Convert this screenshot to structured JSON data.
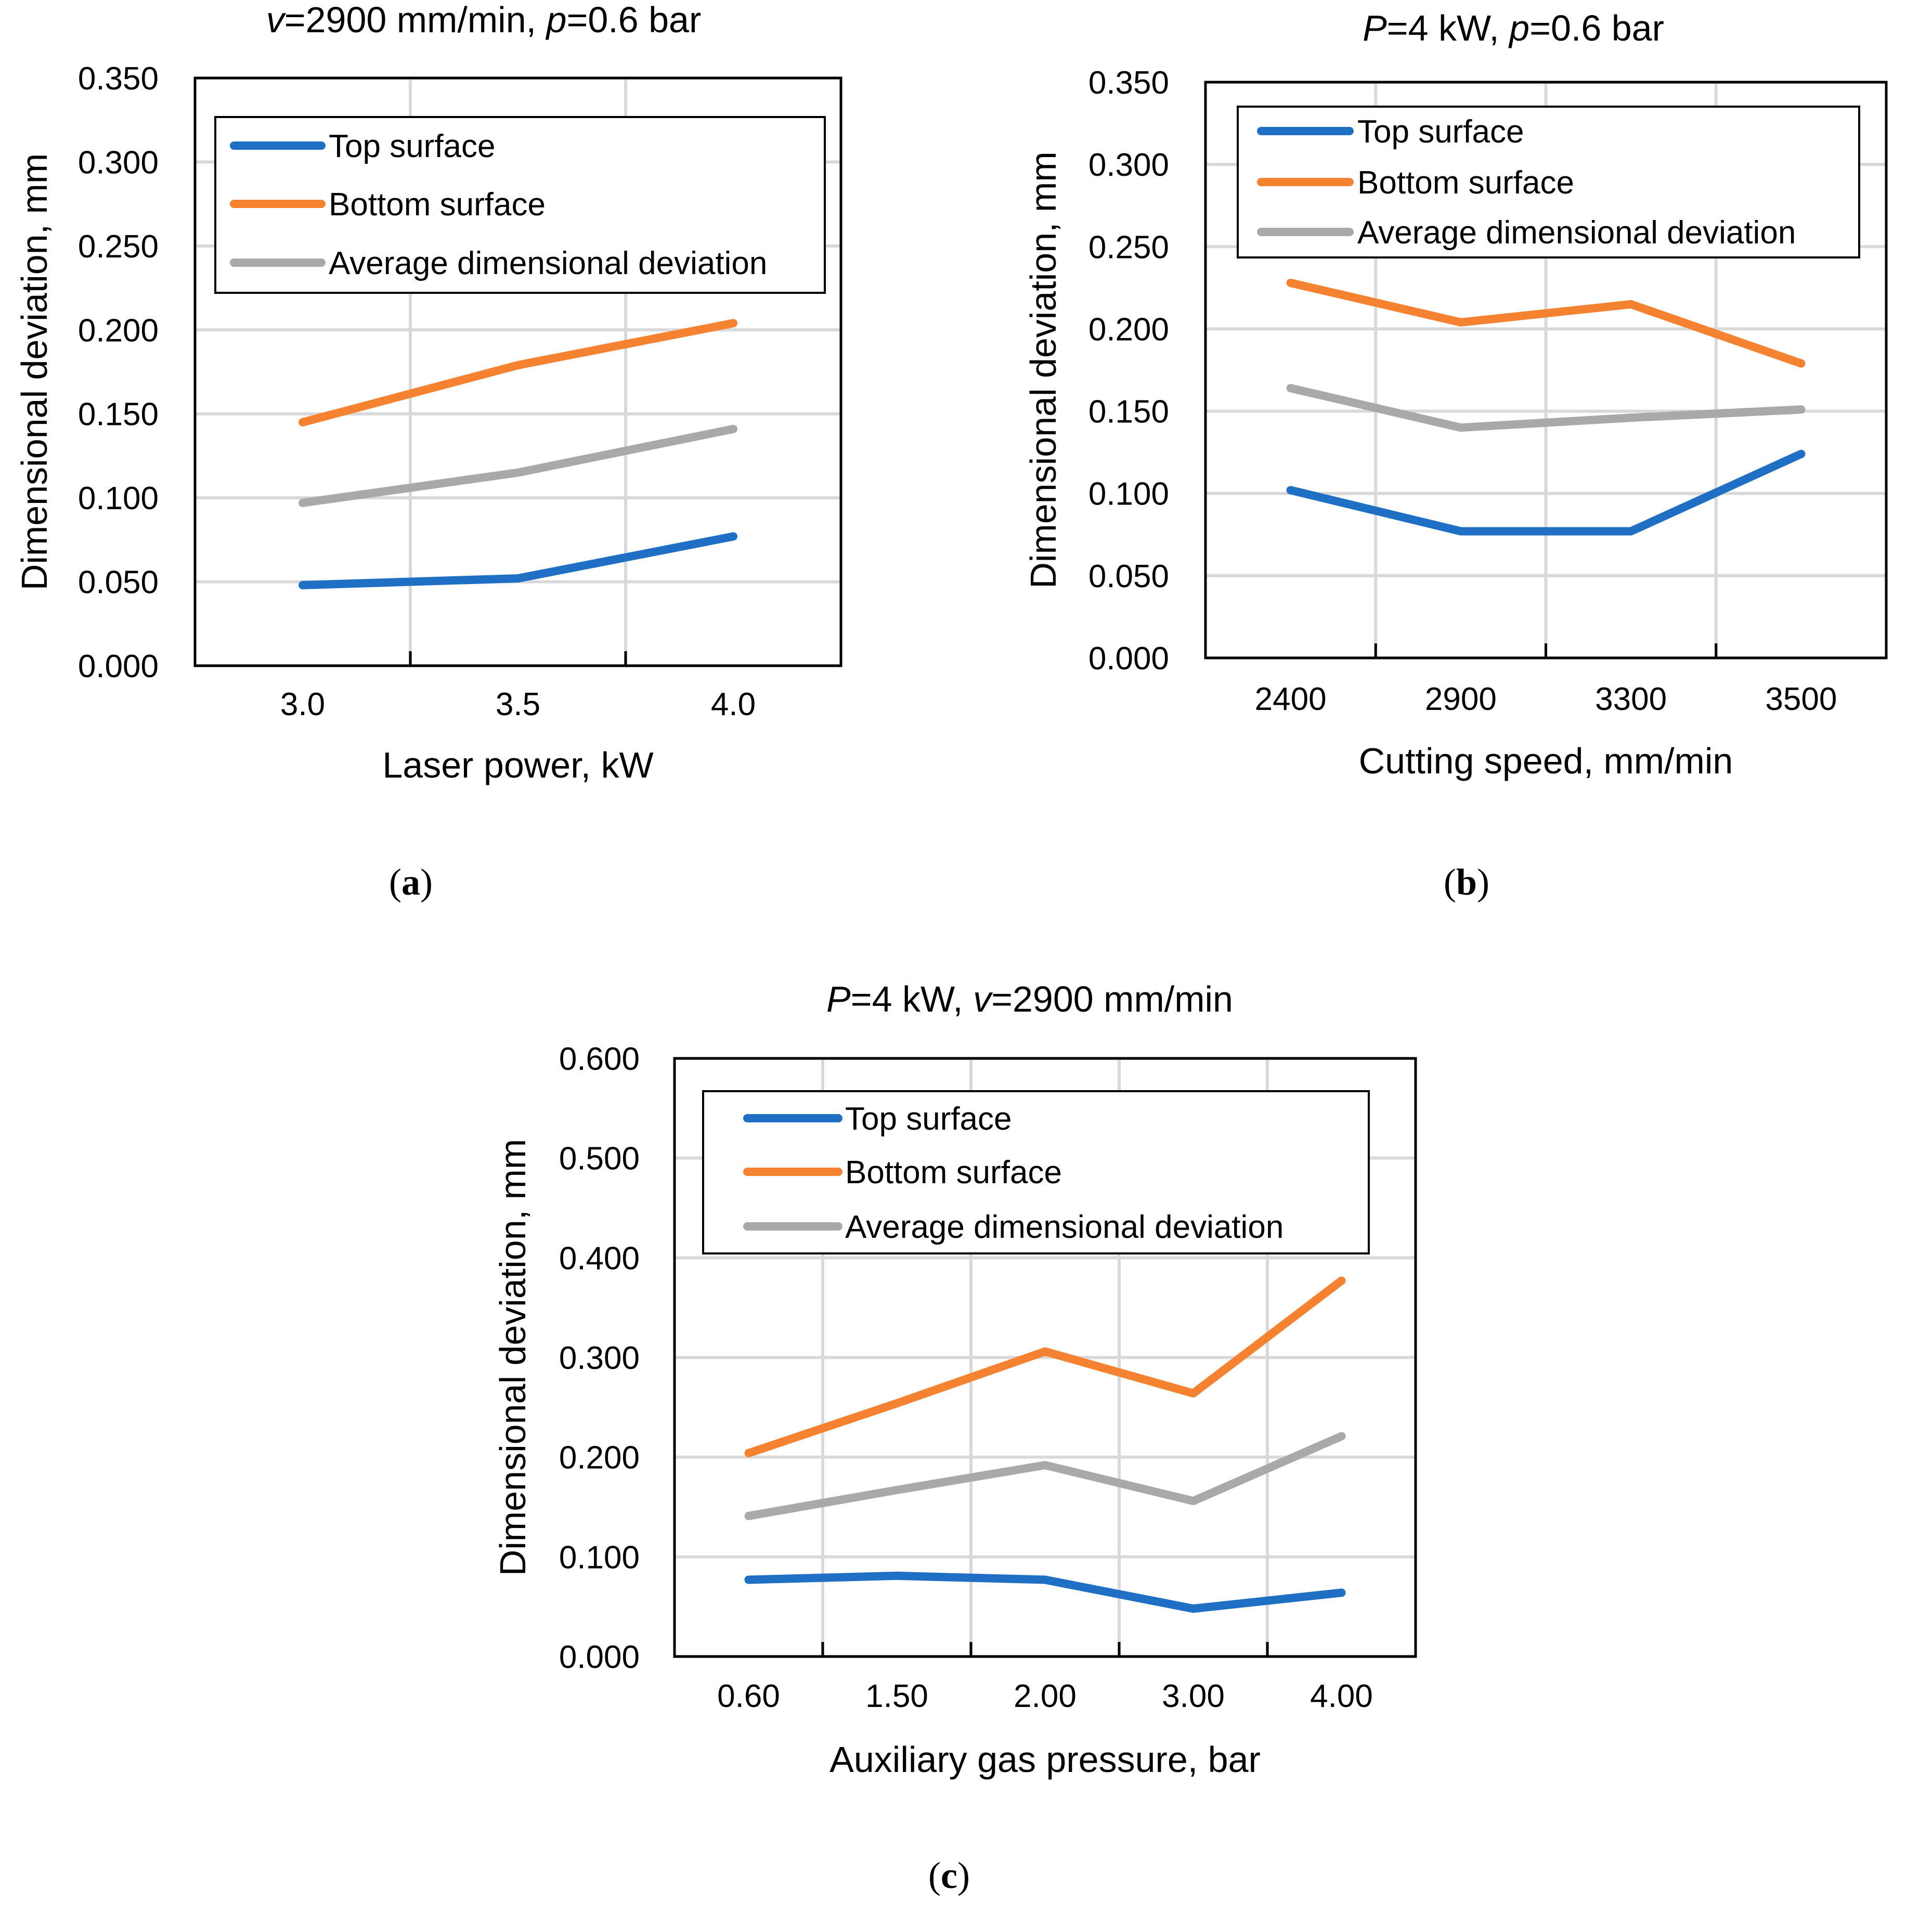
{
  "chart_data": [
    {
      "id": "a",
      "type": "line",
      "title": "v=2900 mm/min, p=0.6 bar",
      "title_parts": [
        {
          "text": "v",
          "italic": true
        },
        {
          "text": "=2900 mm/min, ",
          "italic": false
        },
        {
          "text": "p",
          "italic": true
        },
        {
          "text": "=0.6 bar",
          "italic": false
        }
      ],
      "xlabel": "Laser power, kW",
      "ylabel": "Dimensional deviation, mm",
      "categories": [
        "3.0",
        "3.5",
        "4.0"
      ],
      "ylim": [
        0,
        0.35
      ],
      "yticks": [
        "0.000",
        "0.050",
        "0.100",
        "0.150",
        "0.200",
        "0.250",
        "0.300",
        "0.350"
      ],
      "grid": true,
      "legend": "top-right",
      "series": [
        {
          "name": "Top surface",
          "color": "#1f6fc5",
          "values": [
            0.048,
            0.052,
            0.077
          ]
        },
        {
          "name": "Bottom surface",
          "color": "#f58231",
          "values": [
            0.145,
            0.179,
            0.204
          ]
        },
        {
          "name": "Average dimensional deviation",
          "color": "#a9a9a9",
          "values": [
            0.097,
            0.115,
            0.141
          ]
        }
      ],
      "panel_label": "(a)"
    },
    {
      "id": "b",
      "type": "line",
      "title": "P=4 kW, p=0.6 bar",
      "title_parts": [
        {
          "text": "P",
          "italic": true
        },
        {
          "text": "=4 kW, ",
          "italic": false
        },
        {
          "text": "p",
          "italic": true
        },
        {
          "text": "=0.6 bar",
          "italic": false
        }
      ],
      "xlabel": "Cutting speed, mm/min",
      "ylabel": "Dimensional deviation, mm",
      "categories": [
        "2400",
        "2900",
        "3300",
        "3500"
      ],
      "ylim": [
        0,
        0.35
      ],
      "yticks": [
        "0.000",
        "0.050",
        "0.100",
        "0.150",
        "0.200",
        "0.250",
        "0.300",
        "0.350"
      ],
      "grid": true,
      "legend": "top-right",
      "series": [
        {
          "name": "Top surface",
          "color": "#1f6fc5",
          "values": [
            0.102,
            0.077,
            0.077,
            0.124
          ]
        },
        {
          "name": "Bottom surface",
          "color": "#f58231",
          "values": [
            0.228,
            0.204,
            0.215,
            0.179
          ]
        },
        {
          "name": "Average dimensional deviation",
          "color": "#a9a9a9",
          "values": [
            0.164,
            0.14,
            0.146,
            0.151
          ]
        }
      ],
      "panel_label": "(b)"
    },
    {
      "id": "c",
      "type": "line",
      "title": "P=4 kW, v=2900 mm/min",
      "title_parts": [
        {
          "text": "P",
          "italic": true
        },
        {
          "text": "=4 kW, ",
          "italic": false
        },
        {
          "text": "v",
          "italic": true
        },
        {
          "text": "=2900 mm/min",
          "italic": false
        }
      ],
      "xlabel": "Auxiliary gas pressure, bar",
      "ylabel": "Dimensional deviation, mm",
      "categories": [
        "0.60",
        "1.50",
        "2.00",
        "3.00",
        "4.00"
      ],
      "ylim": [
        0,
        0.6
      ],
      "yticks": [
        "0.000",
        "0.100",
        "0.200",
        "0.300",
        "0.400",
        "0.500",
        "0.600"
      ],
      "grid": true,
      "legend": "top-right",
      "series": [
        {
          "name": "Top surface",
          "color": "#1f6fc5",
          "values": [
            0.077,
            0.081,
            0.077,
            0.048,
            0.064
          ]
        },
        {
          "name": "Bottom surface",
          "color": "#f58231",
          "values": [
            0.204,
            0.254,
            0.306,
            0.264,
            0.377
          ]
        },
        {
          "name": "Average dimensional deviation",
          "color": "#a9a9a9",
          "values": [
            0.141,
            0.167,
            0.192,
            0.156,
            0.221
          ]
        }
      ],
      "panel_label": "(c)"
    }
  ]
}
